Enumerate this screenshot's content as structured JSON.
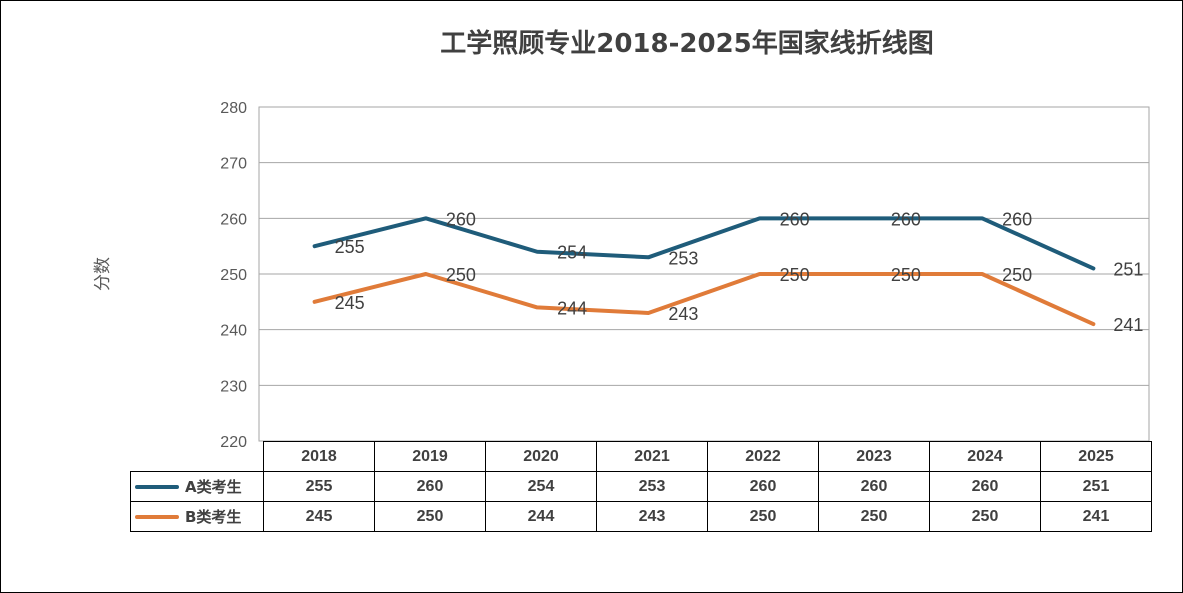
{
  "chart_data": {
    "type": "line",
    "title": "工学照顾专业2018-2025年国家线折线图",
    "ylabel": "分数",
    "ylim": [
      220,
      280
    ],
    "yticks": [
      220,
      230,
      240,
      250,
      260,
      270,
      280
    ],
    "grid": true,
    "categories": [
      "2018",
      "2019",
      "2020",
      "2021",
      "2022",
      "2023",
      "2024",
      "2025"
    ],
    "series": [
      {
        "name": "A类考生",
        "color": "#1f5c7a",
        "values": [
          255,
          260,
          254,
          253,
          260,
          260,
          260,
          251
        ]
      },
      {
        "name": "B类考生",
        "color": "#e07b39",
        "values": [
          245,
          250,
          244,
          243,
          250,
          250,
          250,
          241
        ]
      }
    ],
    "legend": "data-table"
  }
}
